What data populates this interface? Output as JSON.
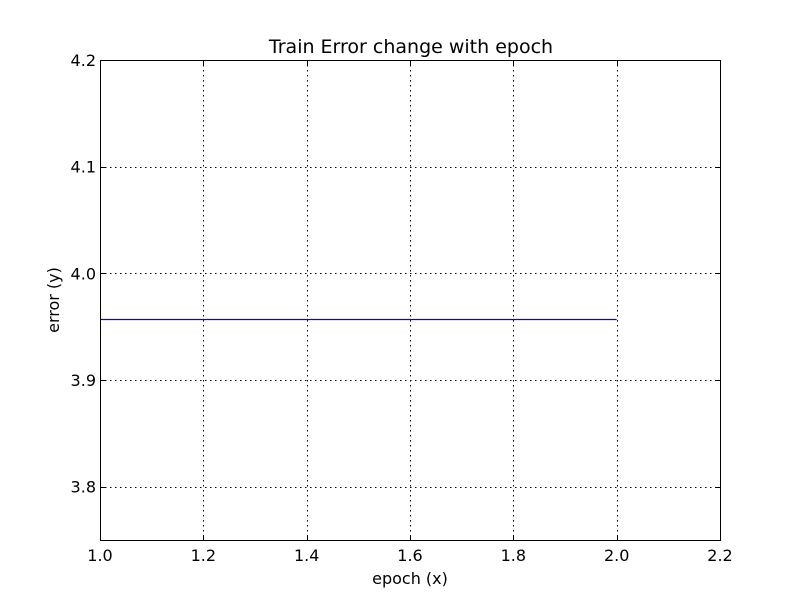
{
  "chart_data": {
    "type": "line",
    "title": "Train Error change with epoch",
    "xlabel": "epoch (x)",
    "ylabel": "error (y)",
    "xlim": [
      1.0,
      2.2
    ],
    "ylim": [
      3.75,
      4.2
    ],
    "xticks": [
      1.0,
      1.2,
      1.4,
      1.6,
      1.8,
      2.0,
      2.2
    ],
    "yticks": [
      3.8,
      3.9,
      4.0,
      4.1,
      4.2
    ],
    "xtick_labels": [
      "1.0",
      "1.2",
      "1.4",
      "1.6",
      "1.8",
      "2.0",
      "2.2"
    ],
    "ytick_labels": [
      "3.8",
      "3.9",
      "4.0",
      "4.1",
      "4.2"
    ],
    "grid": true,
    "series": [
      {
        "color": "#0000ff",
        "x": [
          1.0,
          2.0
        ],
        "y": [
          3.957,
          3.957
        ]
      }
    ]
  }
}
